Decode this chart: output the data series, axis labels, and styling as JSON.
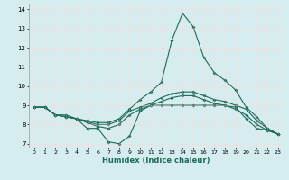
{
  "title": "",
  "xlabel": "Humidex (Indice chaleur)",
  "bg_color": "#d6edef",
  "grid_color": "#ffffff",
  "line_color": "#1a6b5a",
  "xlim": [
    -0.5,
    23.5
  ],
  "ylim": [
    6.8,
    14.3
  ],
  "xticks": [
    0,
    1,
    2,
    3,
    4,
    5,
    6,
    7,
    8,
    9,
    10,
    11,
    12,
    13,
    14,
    15,
    16,
    17,
    18,
    19,
    20,
    21,
    22,
    23
  ],
  "yticks": [
    7,
    8,
    9,
    10,
    11,
    12,
    13,
    14
  ],
  "line1_x": [
    0,
    1,
    2,
    3,
    4,
    5,
    6,
    7,
    8,
    9,
    10,
    11,
    12,
    13,
    14,
    15,
    16,
    17,
    18,
    19,
    20,
    21,
    22,
    23
  ],
  "line1_y": [
    8.9,
    8.9,
    8.5,
    8.5,
    8.3,
    7.8,
    7.8,
    7.1,
    7.0,
    7.4,
    8.7,
    9.0,
    9.0,
    9.0,
    9.0,
    9.0,
    9.0,
    9.0,
    9.0,
    8.9,
    8.3,
    7.8,
    7.7,
    7.5
  ],
  "line2_x": [
    0,
    1,
    2,
    3,
    4,
    5,
    6,
    7,
    8,
    9,
    10,
    11,
    12,
    13,
    14,
    15,
    16,
    17,
    18,
    19,
    20,
    21,
    22,
    23
  ],
  "line2_y": [
    8.9,
    8.9,
    8.5,
    8.4,
    8.3,
    8.2,
    8.1,
    8.1,
    8.3,
    8.8,
    9.3,
    9.7,
    10.2,
    12.4,
    13.8,
    13.1,
    11.5,
    10.7,
    10.3,
    9.8,
    8.9,
    8.4,
    7.8,
    7.5
  ],
  "line3_x": [
    0,
    1,
    2,
    3,
    4,
    5,
    6,
    7,
    8,
    9,
    10,
    11,
    12,
    13,
    14,
    15,
    16,
    17,
    18,
    19,
    20,
    21,
    22,
    23
  ],
  "line3_y": [
    8.9,
    8.9,
    8.5,
    8.4,
    8.3,
    8.15,
    8.0,
    8.0,
    8.2,
    8.7,
    8.9,
    9.1,
    9.4,
    9.6,
    9.7,
    9.7,
    9.5,
    9.3,
    9.2,
    9.0,
    8.8,
    8.2,
    7.8,
    7.5
  ],
  "line4_x": [
    0,
    1,
    2,
    3,
    4,
    5,
    6,
    7,
    8,
    9,
    10,
    11,
    12,
    13,
    14,
    15,
    16,
    17,
    18,
    19,
    20,
    21,
    22,
    23
  ],
  "line4_y": [
    8.9,
    8.9,
    8.5,
    8.4,
    8.3,
    8.1,
    7.9,
    7.8,
    8.0,
    8.5,
    8.8,
    9.0,
    9.2,
    9.4,
    9.5,
    9.5,
    9.3,
    9.1,
    9.0,
    8.8,
    8.5,
    8.0,
    7.7,
    7.5
  ]
}
